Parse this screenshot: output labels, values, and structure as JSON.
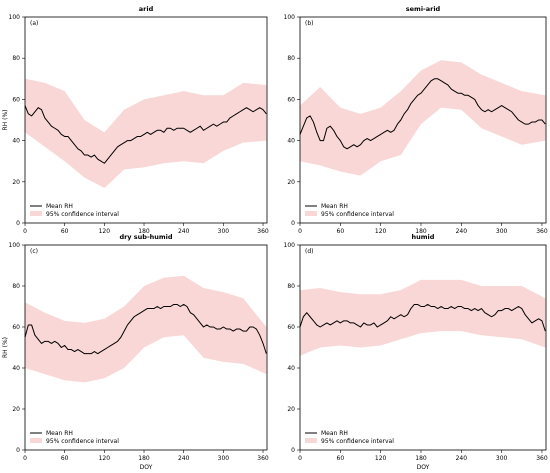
{
  "chart_data": [
    {
      "type": "area",
      "title": "arid",
      "panel_label": "(a)",
      "ylabel": "RH (%)",
      "xlabel": "",
      "xlim": [
        0,
        366
      ],
      "ylim": [
        0,
        100
      ],
      "xticks": [
        "0",
        "60",
        "120",
        "180",
        "240",
        "300",
        "360"
      ],
      "yticks": [
        "0",
        "20",
        "40",
        "60",
        "80",
        "100"
      ],
      "legend": {
        "position": "lower-left",
        "entries": [
          "Mean RH",
          "95% confidence interval"
        ]
      },
      "series": [
        {
          "name": "Mean RH",
          "x": [
            0,
            5,
            10,
            15,
            20,
            25,
            30,
            35,
            40,
            45,
            50,
            55,
            60,
            65,
            70,
            75,
            80,
            85,
            90,
            95,
            100,
            105,
            110,
            115,
            120,
            125,
            130,
            135,
            140,
            145,
            150,
            155,
            160,
            165,
            170,
            175,
            180,
            185,
            190,
            195,
            200,
            205,
            210,
            215,
            220,
            225,
            230,
            235,
            240,
            245,
            250,
            255,
            260,
            265,
            270,
            275,
            280,
            285,
            290,
            295,
            300,
            305,
            310,
            315,
            320,
            325,
            330,
            335,
            340,
            345,
            350,
            355,
            360,
            365
          ],
          "y": [
            57,
            53,
            52,
            54,
            56,
            55,
            51,
            49,
            47,
            46,
            45,
            43,
            42,
            42,
            40,
            38,
            36,
            35,
            33,
            33,
            32,
            33,
            31,
            30,
            29,
            31,
            33,
            35,
            37,
            38,
            39,
            40,
            40,
            41,
            42,
            42,
            43,
            44,
            43,
            44,
            45,
            45,
            44,
            46,
            46,
            45,
            46,
            46,
            46,
            45,
            44,
            45,
            46,
            47,
            45,
            46,
            47,
            48,
            47,
            48,
            49,
            49,
            51,
            52,
            53,
            54,
            55,
            56,
            55,
            54,
            55,
            56,
            55,
            53
          ]
        },
        {
          "name": "95% confidence interval",
          "x": [
            0,
            30,
            60,
            90,
            120,
            150,
            180,
            210,
            240,
            270,
            300,
            330,
            365
          ],
          "upper": [
            70,
            68,
            64,
            50,
            44,
            55,
            60,
            62,
            64,
            62,
            62,
            68,
            67
          ],
          "lower": [
            44,
            37,
            30,
            22,
            17,
            26,
            27,
            29,
            30,
            29,
            35,
            39,
            40
          ]
        }
      ]
    },
    {
      "type": "area",
      "title": "semi-arid",
      "panel_label": "(b)",
      "ylabel": "",
      "xlabel": "",
      "xlim": [
        0,
        366
      ],
      "ylim": [
        0,
        100
      ],
      "xticks": [
        "0",
        "60",
        "120",
        "180",
        "240",
        "300",
        "360"
      ],
      "yticks": [
        "0",
        "20",
        "40",
        "60",
        "80",
        "100"
      ],
      "legend": {
        "position": "lower-left",
        "entries": [
          "Mean RH",
          "95% confidence interval"
        ]
      },
      "series": [
        {
          "name": "Mean RH",
          "x": [
            0,
            5,
            10,
            15,
            20,
            25,
            30,
            35,
            40,
            45,
            50,
            55,
            60,
            65,
            70,
            75,
            80,
            85,
            90,
            95,
            100,
            105,
            110,
            115,
            120,
            125,
            130,
            135,
            140,
            145,
            150,
            155,
            160,
            165,
            170,
            175,
            180,
            185,
            190,
            195,
            200,
            205,
            210,
            215,
            220,
            225,
            230,
            235,
            240,
            245,
            250,
            255,
            260,
            265,
            270,
            275,
            280,
            285,
            290,
            295,
            300,
            305,
            310,
            315,
            320,
            325,
            330,
            335,
            340,
            345,
            350,
            355,
            360,
            365
          ],
          "y": [
            43,
            47,
            51,
            52,
            49,
            44,
            40,
            40,
            46,
            47,
            45,
            42,
            40,
            37,
            36,
            37,
            38,
            37,
            38,
            40,
            41,
            40,
            41,
            42,
            43,
            44,
            45,
            44,
            45,
            48,
            50,
            53,
            55,
            58,
            60,
            62,
            63,
            65,
            67,
            69,
            70,
            70,
            69,
            68,
            67,
            65,
            64,
            63,
            63,
            62,
            62,
            61,
            60,
            57,
            55,
            54,
            55,
            54,
            55,
            56,
            57,
            56,
            55,
            54,
            52,
            50,
            49,
            48,
            48,
            49,
            49,
            50,
            50,
            48
          ]
        },
        {
          "name": "95% confidence interval",
          "x": [
            0,
            30,
            60,
            90,
            120,
            150,
            180,
            210,
            240,
            270,
            300,
            330,
            365
          ],
          "upper": [
            57,
            66,
            56,
            53,
            56,
            64,
            74,
            79,
            78,
            72,
            68,
            64,
            62
          ],
          "lower": [
            30,
            28,
            25,
            23,
            30,
            33,
            48,
            56,
            55,
            46,
            42,
            38,
            40
          ]
        }
      ]
    },
    {
      "type": "area",
      "title": "dry sub-humid",
      "panel_label": "(c)",
      "ylabel": "RH (%)",
      "xlabel": "DOY",
      "xlim": [
        0,
        366
      ],
      "ylim": [
        0,
        100
      ],
      "xticks": [
        "0",
        "60",
        "120",
        "180",
        "240",
        "300",
        "360"
      ],
      "yticks": [
        "0",
        "20",
        "40",
        "60",
        "80",
        "100"
      ],
      "legend": {
        "position": "lower-left",
        "entries": [
          "Mean RH",
          "95% confidence interval"
        ]
      },
      "series": [
        {
          "name": "Mean RH",
          "x": [
            0,
            5,
            10,
            15,
            20,
            25,
            30,
            35,
            40,
            45,
            50,
            55,
            60,
            65,
            70,
            75,
            80,
            85,
            90,
            95,
            100,
            105,
            110,
            115,
            120,
            125,
            130,
            135,
            140,
            145,
            150,
            155,
            160,
            165,
            170,
            175,
            180,
            185,
            190,
            195,
            200,
            205,
            210,
            215,
            220,
            225,
            230,
            235,
            240,
            245,
            250,
            255,
            260,
            265,
            270,
            275,
            280,
            285,
            290,
            295,
            300,
            305,
            310,
            315,
            320,
            325,
            330,
            335,
            340,
            345,
            350,
            355,
            360,
            365
          ],
          "y": [
            55,
            61,
            61,
            56,
            54,
            52,
            53,
            53,
            52,
            53,
            52,
            50,
            51,
            49,
            49,
            48,
            49,
            48,
            47,
            47,
            47,
            48,
            47,
            48,
            49,
            50,
            51,
            52,
            53,
            55,
            58,
            61,
            63,
            65,
            66,
            67,
            68,
            69,
            69,
            69,
            70,
            69,
            70,
            70,
            70,
            71,
            71,
            70,
            71,
            70,
            67,
            66,
            64,
            62,
            60,
            61,
            60,
            60,
            59,
            59,
            60,
            59,
            59,
            58,
            59,
            59,
            58,
            58,
            60,
            60,
            59,
            56,
            52,
            47
          ]
        },
        {
          "name": "95% confidence interval",
          "x": [
            0,
            30,
            60,
            90,
            120,
            150,
            180,
            210,
            240,
            270,
            300,
            330,
            365
          ],
          "upper": [
            72,
            67,
            63,
            62,
            64,
            70,
            80,
            84,
            85,
            79,
            77,
            74,
            60
          ],
          "lower": [
            40,
            37,
            34,
            33,
            35,
            40,
            50,
            55,
            56,
            45,
            43,
            42,
            37
          ]
        }
      ]
    },
    {
      "type": "area",
      "title": "humid",
      "panel_label": "(d)",
      "ylabel": "",
      "xlabel": "DOY",
      "xlim": [
        0,
        366
      ],
      "ylim": [
        0,
        100
      ],
      "xticks": [
        "0",
        "60",
        "120",
        "180",
        "240",
        "300",
        "360"
      ],
      "yticks": [
        "0",
        "20",
        "40",
        "60",
        "80",
        "100"
      ],
      "legend": {
        "position": "lower-left",
        "entries": [
          "Mean RH",
          "95% confidence interval"
        ]
      },
      "series": [
        {
          "name": "Mean RH",
          "x": [
            0,
            5,
            10,
            15,
            20,
            25,
            30,
            35,
            40,
            45,
            50,
            55,
            60,
            65,
            70,
            75,
            80,
            85,
            90,
            95,
            100,
            105,
            110,
            115,
            120,
            125,
            130,
            135,
            140,
            145,
            150,
            155,
            160,
            165,
            170,
            175,
            180,
            185,
            190,
            195,
            200,
            205,
            210,
            215,
            220,
            225,
            230,
            235,
            240,
            245,
            250,
            255,
            260,
            265,
            270,
            275,
            280,
            285,
            290,
            295,
            300,
            305,
            310,
            315,
            320,
            325,
            330,
            335,
            340,
            345,
            350,
            355,
            360,
            365
          ],
          "y": [
            60,
            65,
            67,
            65,
            63,
            61,
            60,
            61,
            62,
            61,
            62,
            63,
            62,
            63,
            63,
            62,
            62,
            61,
            60,
            62,
            61,
            61,
            62,
            60,
            61,
            62,
            63,
            65,
            64,
            65,
            66,
            65,
            66,
            69,
            71,
            71,
            70,
            70,
            71,
            70,
            70,
            69,
            70,
            69,
            69,
            70,
            69,
            70,
            70,
            69,
            69,
            68,
            69,
            68,
            69,
            67,
            66,
            65,
            66,
            68,
            68,
            69,
            69,
            68,
            69,
            70,
            69,
            66,
            64,
            62,
            63,
            64,
            63,
            58
          ]
        },
        {
          "name": "95% confidence interval",
          "x": [
            0,
            30,
            60,
            90,
            120,
            150,
            180,
            210,
            240,
            270,
            300,
            330,
            365
          ],
          "upper": [
            78,
            79,
            77,
            76,
            76,
            78,
            83,
            83,
            83,
            80,
            80,
            80,
            74
          ],
          "lower": [
            46,
            50,
            51,
            50,
            51,
            54,
            57,
            58,
            58,
            56,
            55,
            54,
            50
          ]
        }
      ]
    }
  ],
  "colors": {
    "line": "#000000",
    "band": "#f4b6b6",
    "axis": "#000000",
    "background": "#ffffff"
  }
}
